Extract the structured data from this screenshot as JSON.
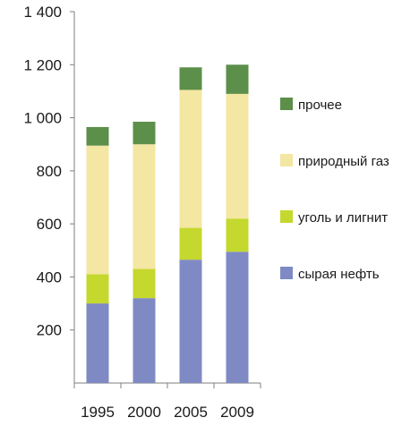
{
  "chart_data": {
    "type": "bar",
    "stacked": true,
    "title": "",
    "xlabel": "",
    "ylabel": "",
    "categories": [
      "1995",
      "2000",
      "2005",
      "2009"
    ],
    "series": [
      {
        "name": "сырая нефть",
        "color": "#7f8ac4",
        "values": [
          300,
          320,
          465,
          495
        ]
      },
      {
        "name": "уголь и лигнит",
        "color": "#c4d82e",
        "values": [
          110,
          110,
          120,
          125
        ]
      },
      {
        "name": "природный газ",
        "color": "#f4e6a3",
        "values": [
          485,
          470,
          520,
          470
        ]
      },
      {
        "name": "прочее",
        "color": "#5c8f4a",
        "values": [
          70,
          85,
          85,
          110
        ]
      }
    ],
    "ylim": [
      0,
      1400
    ],
    "yticks": [
      {
        "value": 200,
        "label": "200"
      },
      {
        "value": 400,
        "label": "400"
      },
      {
        "value": 600,
        "label": "600"
      },
      {
        "value": 800,
        "label": "800"
      },
      {
        "value": 1000,
        "label": "1 000"
      },
      {
        "value": 1200,
        "label": "1 200"
      },
      {
        "value": 1400,
        "label": "1 400"
      }
    ],
    "grid": false,
    "legend": "right"
  }
}
